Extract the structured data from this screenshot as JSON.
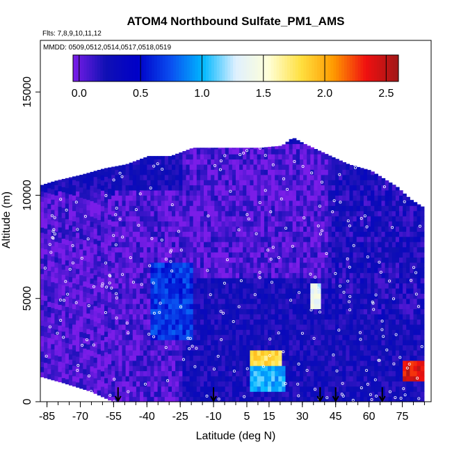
{
  "chart_data": {
    "type": "heatmap",
    "title": "ATOM4 Northbound Sulfate_PM1_AMS",
    "subtitle_flights": "Flts: 7,8,9,10,11,12",
    "subtitle_dates": "MMDD: 0509,0512,0514,0517,0518,0519",
    "xlabel": "Latitude (deg N)",
    "ylabel": "Altitude (m)",
    "xlim": [
      -88,
      88
    ],
    "ylim": [
      0,
      17500
    ],
    "x_ticks": [
      -85,
      -70,
      -55,
      -40,
      -25,
      -10,
      5,
      15,
      30,
      45,
      60,
      75
    ],
    "y_ticks": [
      0,
      5000,
      10000,
      15000
    ],
    "colorbar": {
      "min": -0.05,
      "max": 2.6,
      "ticks": [
        0.0,
        0.5,
        1.0,
        1.5,
        2.0,
        2.5
      ],
      "tick_labels": [
        "0.0",
        "0.5",
        "1.0",
        "1.5",
        "2.0",
        "2.5"
      ],
      "colors": [
        "#7a1de8",
        "#1010b4",
        "#0000c8",
        "#0a4ef0",
        "#00b8ff",
        "#dff0ff",
        "#ffffd8",
        "#ffe040",
        "#ff9a00",
        "#f01010",
        "#a01818"
      ]
    },
    "colorbar_position": "top-inside",
    "profile_tops": [
      {
        "lat": -88,
        "top_alt": 10500
      },
      {
        "lat": -82,
        "top_alt": 10700
      },
      {
        "lat": -70,
        "top_alt": 11000
      },
      {
        "lat": -60,
        "top_alt": 11300
      },
      {
        "lat": -50,
        "top_alt": 11500
      },
      {
        "lat": -40,
        "top_alt": 11900
      },
      {
        "lat": -30,
        "top_alt": 11900
      },
      {
        "lat": -20,
        "top_alt": 12300
      },
      {
        "lat": -10,
        "top_alt": 12300
      },
      {
        "lat": 0,
        "top_alt": 12300
      },
      {
        "lat": 10,
        "top_alt": 12300
      },
      {
        "lat": 20,
        "top_alt": 12400
      },
      {
        "lat": 25,
        "top_alt": 12800
      },
      {
        "lat": 30,
        "top_alt": 12500
      },
      {
        "lat": 40,
        "top_alt": 12000
      },
      {
        "lat": 50,
        "top_alt": 11500
      },
      {
        "lat": 60,
        "top_alt": 11200
      },
      {
        "lat": 66,
        "top_alt": 10800
      },
      {
        "lat": 72,
        "top_alt": 10400
      },
      {
        "lat": 78,
        "top_alt": 9800
      },
      {
        "lat": 84,
        "top_alt": 9400
      }
    ],
    "profile_bottoms": [
      {
        "lat": -88,
        "bottom_alt": 1200
      },
      {
        "lat": -78,
        "bottom_alt": 900
      },
      {
        "lat": -66,
        "bottom_alt": 500
      },
      {
        "lat": -56,
        "bottom_alt": 0
      },
      {
        "lat": 84,
        "bottom_alt": 0
      }
    ],
    "features": [
      {
        "lat_range": [
          -88,
          -25
        ],
        "alt_range": [
          0,
          10000
        ],
        "value": 0.05
      },
      {
        "lat_range": [
          -25,
          40
        ],
        "alt_range": [
          6000,
          12300
        ],
        "value": 0.05
      },
      {
        "lat_range": [
          40,
          84
        ],
        "alt_range": [
          4000,
          11000
        ],
        "value": 0.2
      },
      {
        "lat_range": [
          -40,
          -20
        ],
        "alt_range": [
          3000,
          6500
        ],
        "value": 0.65
      },
      {
        "lat_range": [
          5,
          20
        ],
        "alt_range": [
          1200,
          2400
        ],
        "value": 1.8
      },
      {
        "lat_range": [
          5,
          22
        ],
        "alt_range": [
          500,
          1500
        ],
        "value": 1.0
      },
      {
        "lat_range": [
          33,
          38
        ],
        "alt_range": [
          4500,
          5500
        ],
        "value": 1.35
      },
      {
        "lat_range": [
          74,
          84
        ],
        "alt_range": [
          900,
          1900
        ],
        "value": 2.4
      }
    ],
    "arrows_lat": [
      -53,
      -10,
      38,
      45,
      66
    ]
  }
}
